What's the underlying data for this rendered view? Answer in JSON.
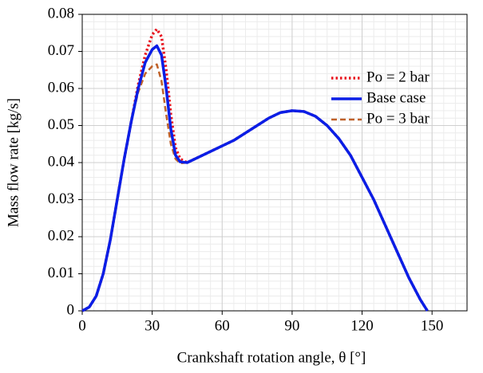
{
  "chart_data": {
    "type": "line",
    "xlabel": "Crankshaft rotation angle, θ [°]",
    "ylabel": "Mass flow rate [kg/s]",
    "x": [
      0,
      3,
      6,
      9,
      12,
      15,
      18,
      21,
      24,
      27,
      30,
      32,
      34,
      36,
      38,
      40,
      42,
      45,
      50,
      55,
      60,
      65,
      70,
      75,
      80,
      85,
      90,
      95,
      100,
      105,
      110,
      115,
      120,
      125,
      130,
      135,
      140,
      145,
      148
    ],
    "series": [
      {
        "name": "Po = 2 bar",
        "color": "#e8141e",
        "linestyle": "dotted",
        "values": [
          0,
          0.001,
          0.004,
          0.01,
          0.019,
          0.03,
          0.041,
          0.051,
          0.061,
          0.069,
          0.0745,
          0.076,
          0.074,
          0.065,
          0.053,
          0.044,
          0.041,
          0.04,
          0.0415,
          0.043,
          0.0445,
          0.046,
          0.048,
          0.05,
          0.052,
          0.0535,
          0.054,
          0.0538,
          0.0525,
          0.05,
          0.0465,
          0.042,
          0.036,
          0.03,
          0.023,
          0.016,
          0.009,
          0.003,
          0
        ]
      },
      {
        "name": "Base case",
        "color": "#0a1ee6",
        "linestyle": "solid",
        "values": [
          0,
          0.001,
          0.004,
          0.01,
          0.019,
          0.03,
          0.041,
          0.051,
          0.06,
          0.067,
          0.0705,
          0.0715,
          0.069,
          0.06,
          0.049,
          0.042,
          0.0402,
          0.04,
          0.0415,
          0.043,
          0.0445,
          0.046,
          0.048,
          0.05,
          0.052,
          0.0535,
          0.054,
          0.0538,
          0.0525,
          0.05,
          0.0465,
          0.042,
          0.036,
          0.03,
          0.023,
          0.016,
          0.009,
          0.003,
          0
        ]
      },
      {
        "name": "Po = 3 bar",
        "color": "#c0622a",
        "linestyle": "dashed",
        "values": [
          0,
          0.001,
          0.004,
          0.01,
          0.019,
          0.03,
          0.041,
          0.051,
          0.059,
          0.064,
          0.066,
          0.0665,
          0.062,
          0.053,
          0.045,
          0.041,
          0.0398,
          0.04,
          0.0415,
          0.043,
          0.0445,
          0.046,
          0.048,
          0.05,
          0.052,
          0.0535,
          0.054,
          0.0538,
          0.0525,
          0.05,
          0.0465,
          0.042,
          0.036,
          0.03,
          0.023,
          0.016,
          0.009,
          0.003,
          0
        ]
      }
    ],
    "xlim": [
      0,
      165
    ],
    "xticks": [
      0,
      30,
      60,
      90,
      120,
      150
    ],
    "ylim": [
      0,
      0.08
    ],
    "yticks": [
      0,
      0.01,
      0.02,
      0.03,
      0.04,
      0.05,
      0.06,
      0.07,
      0.08
    ],
    "grid": true,
    "minor_grid": true,
    "legend": "upper right"
  }
}
